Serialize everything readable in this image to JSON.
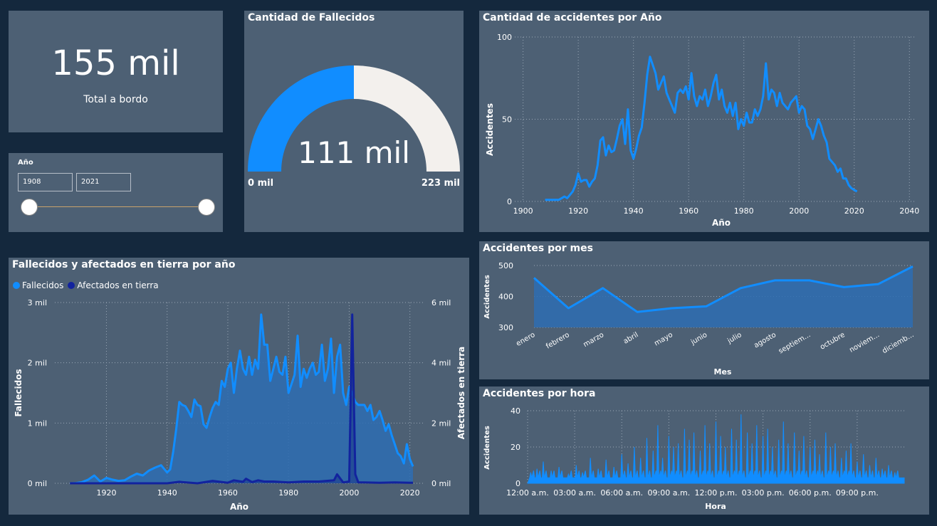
{
  "colors": {
    "background": "#14283d",
    "card": "#4d6074",
    "accent": "#118dff",
    "dark_series": "#12239e",
    "gauge_remaining": "#f3f0ed"
  },
  "kpi": {
    "value": "155 mil",
    "label": "Total a bordo"
  },
  "slicer": {
    "title": "Año",
    "start": "1908",
    "end": "2021"
  },
  "gauge": {
    "title": "Cantidad de Fallecidos",
    "value_label": "111 mil",
    "min_label": "0 mil",
    "max_label": "223 mil"
  },
  "chart_data": [
    {
      "id": "accidentes_por_anio",
      "type": "line",
      "title": "Cantidad de accidentes por Año",
      "xlabel": "Año",
      "ylabel": "Accidentes",
      "xlim": [
        1897,
        2042
      ],
      "ylim": [
        0,
        100
      ],
      "xticks": [
        "1900",
        "1920",
        "1940",
        "1960",
        "1980",
        "2000",
        "2020",
        "2040"
      ],
      "yticks": [
        "0",
        "50",
        "100"
      ],
      "grid": true,
      "x": [
        1908,
        1910,
        1912,
        1913,
        1914,
        1915,
        1916,
        1917,
        1918,
        1919,
        1920,
        1921,
        1922,
        1923,
        1924,
        1925,
        1926,
        1927,
        1928,
        1929,
        1930,
        1931,
        1932,
        1933,
        1934,
        1935,
        1936,
        1937,
        1938,
        1939,
        1940,
        1941,
        1942,
        1943,
        1944,
        1945,
        1946,
        1947,
        1948,
        1949,
        1950,
        1951,
        1952,
        1953,
        1954,
        1955,
        1956,
        1957,
        1958,
        1959,
        1960,
        1961,
        1962,
        1963,
        1964,
        1965,
        1966,
        1967,
        1968,
        1969,
        1970,
        1971,
        1972,
        1973,
        1974,
        1975,
        1976,
        1977,
        1978,
        1979,
        1980,
        1981,
        1982,
        1983,
        1984,
        1985,
        1986,
        1987,
        1988,
        1989,
        1990,
        1991,
        1992,
        1993,
        1994,
        1995,
        1996,
        1997,
        1998,
        1999,
        2000,
        2001,
        2002,
        2003,
        2004,
        2005,
        2006,
        2007,
        2008,
        2009,
        2010,
        2011,
        2012,
        2013,
        2014,
        2015,
        2016,
        2017,
        2018,
        2019,
        2020,
        2021
      ],
      "values": [
        1,
        1,
        1,
        1,
        2,
        3,
        2,
        4,
        6,
        10,
        17,
        12,
        13,
        13,
        9,
        12,
        14,
        22,
        37,
        39,
        28,
        34,
        30,
        31,
        38,
        46,
        50,
        35,
        56,
        31,
        26,
        32,
        40,
        45,
        60,
        77,
        88,
        83,
        78,
        68,
        72,
        76,
        66,
        62,
        58,
        54,
        66,
        68,
        66,
        70,
        62,
        78,
        64,
        58,
        64,
        62,
        68,
        58,
        64,
        72,
        77,
        62,
        68,
        58,
        54,
        60,
        52,
        60,
        44,
        50,
        46,
        54,
        48,
        48,
        56,
        52,
        56,
        64,
        84,
        62,
        68,
        66,
        58,
        66,
        60,
        58,
        56,
        60,
        62,
        64,
        54,
        58,
        56,
        46,
        44,
        38,
        44,
        50,
        46,
        40,
        36,
        26,
        24,
        22,
        18,
        20,
        14,
        14,
        10,
        8,
        7,
        6
      ]
    },
    {
      "id": "accidentes_por_mes",
      "type": "area",
      "title": "Accidentes por mes",
      "xlabel": "Mes",
      "ylabel": "Accidentes",
      "ylim": [
        300,
        500
      ],
      "yticks": [
        "300",
        "400",
        "500"
      ],
      "categories": [
        "enero",
        "febrero",
        "marzo",
        "abril",
        "mayo",
        "junio",
        "julio",
        "agosto",
        "septiem...",
        "octubre",
        "noviem...",
        "diciemb..."
      ],
      "values": [
        460,
        362,
        427,
        350,
        362,
        368,
        427,
        452,
        452,
        430,
        440,
        497
      ]
    },
    {
      "id": "accidentes_por_hora",
      "type": "area",
      "title": "Accidentes por hora",
      "xlabel": "Hora",
      "ylabel": "Accidentes",
      "ylim": [
        0,
        40
      ],
      "yticks": [
        "0",
        "20",
        "40"
      ],
      "xticks": [
        "12:00 a.m.",
        "03:00 a.m.",
        "06:00 a.m.",
        "09:00 a.m.",
        "12:00 p.m.",
        "03:00 p.m.",
        "06:00 p.m.",
        "09:00 p.m."
      ],
      "peaks_hour": [
        0.2,
        0.6,
        1.0,
        1.5,
        2.0,
        2.6,
        3.1,
        3.5,
        4.0,
        4.5,
        5.0,
        5.5,
        6.0,
        6.4,
        6.8,
        7.2,
        7.6,
        8.0,
        8.3,
        8.6,
        9.0,
        9.3,
        9.6,
        10.0,
        10.3,
        10.6,
        11.0,
        11.3,
        11.6,
        12.0,
        12.3,
        12.6,
        13.0,
        13.3,
        13.6,
        14.0,
        14.3,
        14.6,
        15.0,
        15.3,
        15.6,
        16.0,
        16.3,
        16.6,
        17.0,
        17.3,
        17.6,
        18.0,
        18.3,
        18.6,
        19.0,
        19.3,
        19.6,
        20.0,
        20.3,
        20.6,
        21.0,
        21.4,
        21.8,
        22.2,
        22.6,
        23.0,
        23.4
      ],
      "peaks_value": [
        6,
        8,
        12,
        7,
        9,
        5,
        10,
        6,
        14,
        8,
        13,
        9,
        16,
        11,
        20,
        14,
        25,
        18,
        32,
        14,
        26,
        20,
        22,
        30,
        24,
        28,
        18,
        32,
        22,
        34,
        26,
        20,
        30,
        24,
        38,
        28,
        22,
        32,
        26,
        30,
        20,
        24,
        34,
        22,
        28,
        18,
        26,
        20,
        24,
        16,
        28,
        20,
        22,
        14,
        18,
        22,
        12,
        16,
        10,
        14,
        8,
        10,
        6
      ],
      "baseline": 3
    },
    {
      "id": "fallecidos_afectados",
      "type": "area",
      "title": "Fallecidos y afectados en tierra por año",
      "xlabel": "Año",
      "ylabel": "Fallecidos",
      "y2label": "Afectados en tierra",
      "xlim": [
        1903,
        2025
      ],
      "ylim": [
        0,
        3000
      ],
      "y2lim": [
        0,
        6000
      ],
      "xticks": [
        "1920",
        "1940",
        "1960",
        "1980",
        "2000",
        "2020"
      ],
      "yticks": [
        "0 mil",
        "1 mil",
        "2 mil",
        "3 mil"
      ],
      "y2ticks": [
        "0 mil",
        "2 mil",
        "4 mil",
        "6 mil"
      ],
      "legend": "top-left",
      "series": [
        {
          "name": "Fallecidos",
          "color": "#118dff",
          "x": [
            1908,
            1910,
            1912,
            1914,
            1916,
            1918,
            1920,
            1922,
            1924,
            1926,
            1928,
            1930,
            1932,
            1934,
            1936,
            1938,
            1940,
            1941,
            1942,
            1943,
            1944,
            1945,
            1946,
            1947,
            1948,
            1949,
            1950,
            1951,
            1952,
            1953,
            1954,
            1955,
            1956,
            1957,
            1958,
            1959,
            1960,
            1961,
            1962,
            1963,
            1964,
            1965,
            1966,
            1967,
            1968,
            1969,
            1970,
            1971,
            1972,
            1973,
            1974,
            1975,
            1976,
            1977,
            1978,
            1979,
            1980,
            1981,
            1982,
            1983,
            1984,
            1985,
            1986,
            1987,
            1988,
            1989,
            1990,
            1991,
            1992,
            1993,
            1994,
            1995,
            1996,
            1997,
            1998,
            1999,
            2000,
            2001,
            2002,
            2003,
            2004,
            2005,
            2006,
            2007,
            2008,
            2009,
            2010,
            2011,
            2012,
            2013,
            2014,
            2015,
            2016,
            2017,
            2018,
            2019,
            2020,
            2021
          ],
          "values": [
            0,
            5,
            20,
            60,
            130,
            30,
            90,
            60,
            40,
            50,
            110,
            160,
            130,
            210,
            260,
            300,
            180,
            230,
            520,
            900,
            1350,
            1300,
            1280,
            1200,
            1100,
            1390,
            1300,
            1280,
            980,
            920,
            1100,
            1250,
            1350,
            1300,
            1700,
            1600,
            1900,
            2000,
            1500,
            1900,
            2200,
            1900,
            1800,
            2100,
            1800,
            2050,
            1900,
            2800,
            2300,
            2300,
            1700,
            1900,
            2100,
            1850,
            1800,
            2100,
            1500,
            1650,
            1800,
            2450,
            1600,
            1900,
            1750,
            1900,
            2000,
            1800,
            1850,
            2300,
            1700,
            1900,
            2400,
            1500,
            2100,
            2300,
            1500,
            1300,
            1600,
            1500,
            1350,
            1300,
            1300,
            1300,
            1200,
            1300,
            1050,
            1100,
            1200,
            1050,
            870,
            980,
            800,
            650,
            500,
            450,
            330,
            650,
            400,
            280
          ]
        },
        {
          "name": "Afectados en tierra",
          "color": "#12239e",
          "x": [
            1908,
            1920,
            1940,
            1944,
            1950,
            1955,
            1960,
            1962,
            1965,
            1966,
            1968,
            1970,
            1972,
            1975,
            1980,
            1985,
            1990,
            1995,
            1996,
            1998,
            2000,
            2001,
            2002,
            2003,
            2005,
            2010,
            2015,
            2020,
            2021
          ],
          "values": [
            0,
            0,
            0,
            50,
            0,
            80,
            20,
            100,
            50,
            150,
            40,
            100,
            60,
            60,
            30,
            60,
            60,
            100,
            300,
            30,
            60,
            5600,
            300,
            30,
            30,
            20,
            30,
            20,
            20
          ]
        }
      ]
    }
  ]
}
